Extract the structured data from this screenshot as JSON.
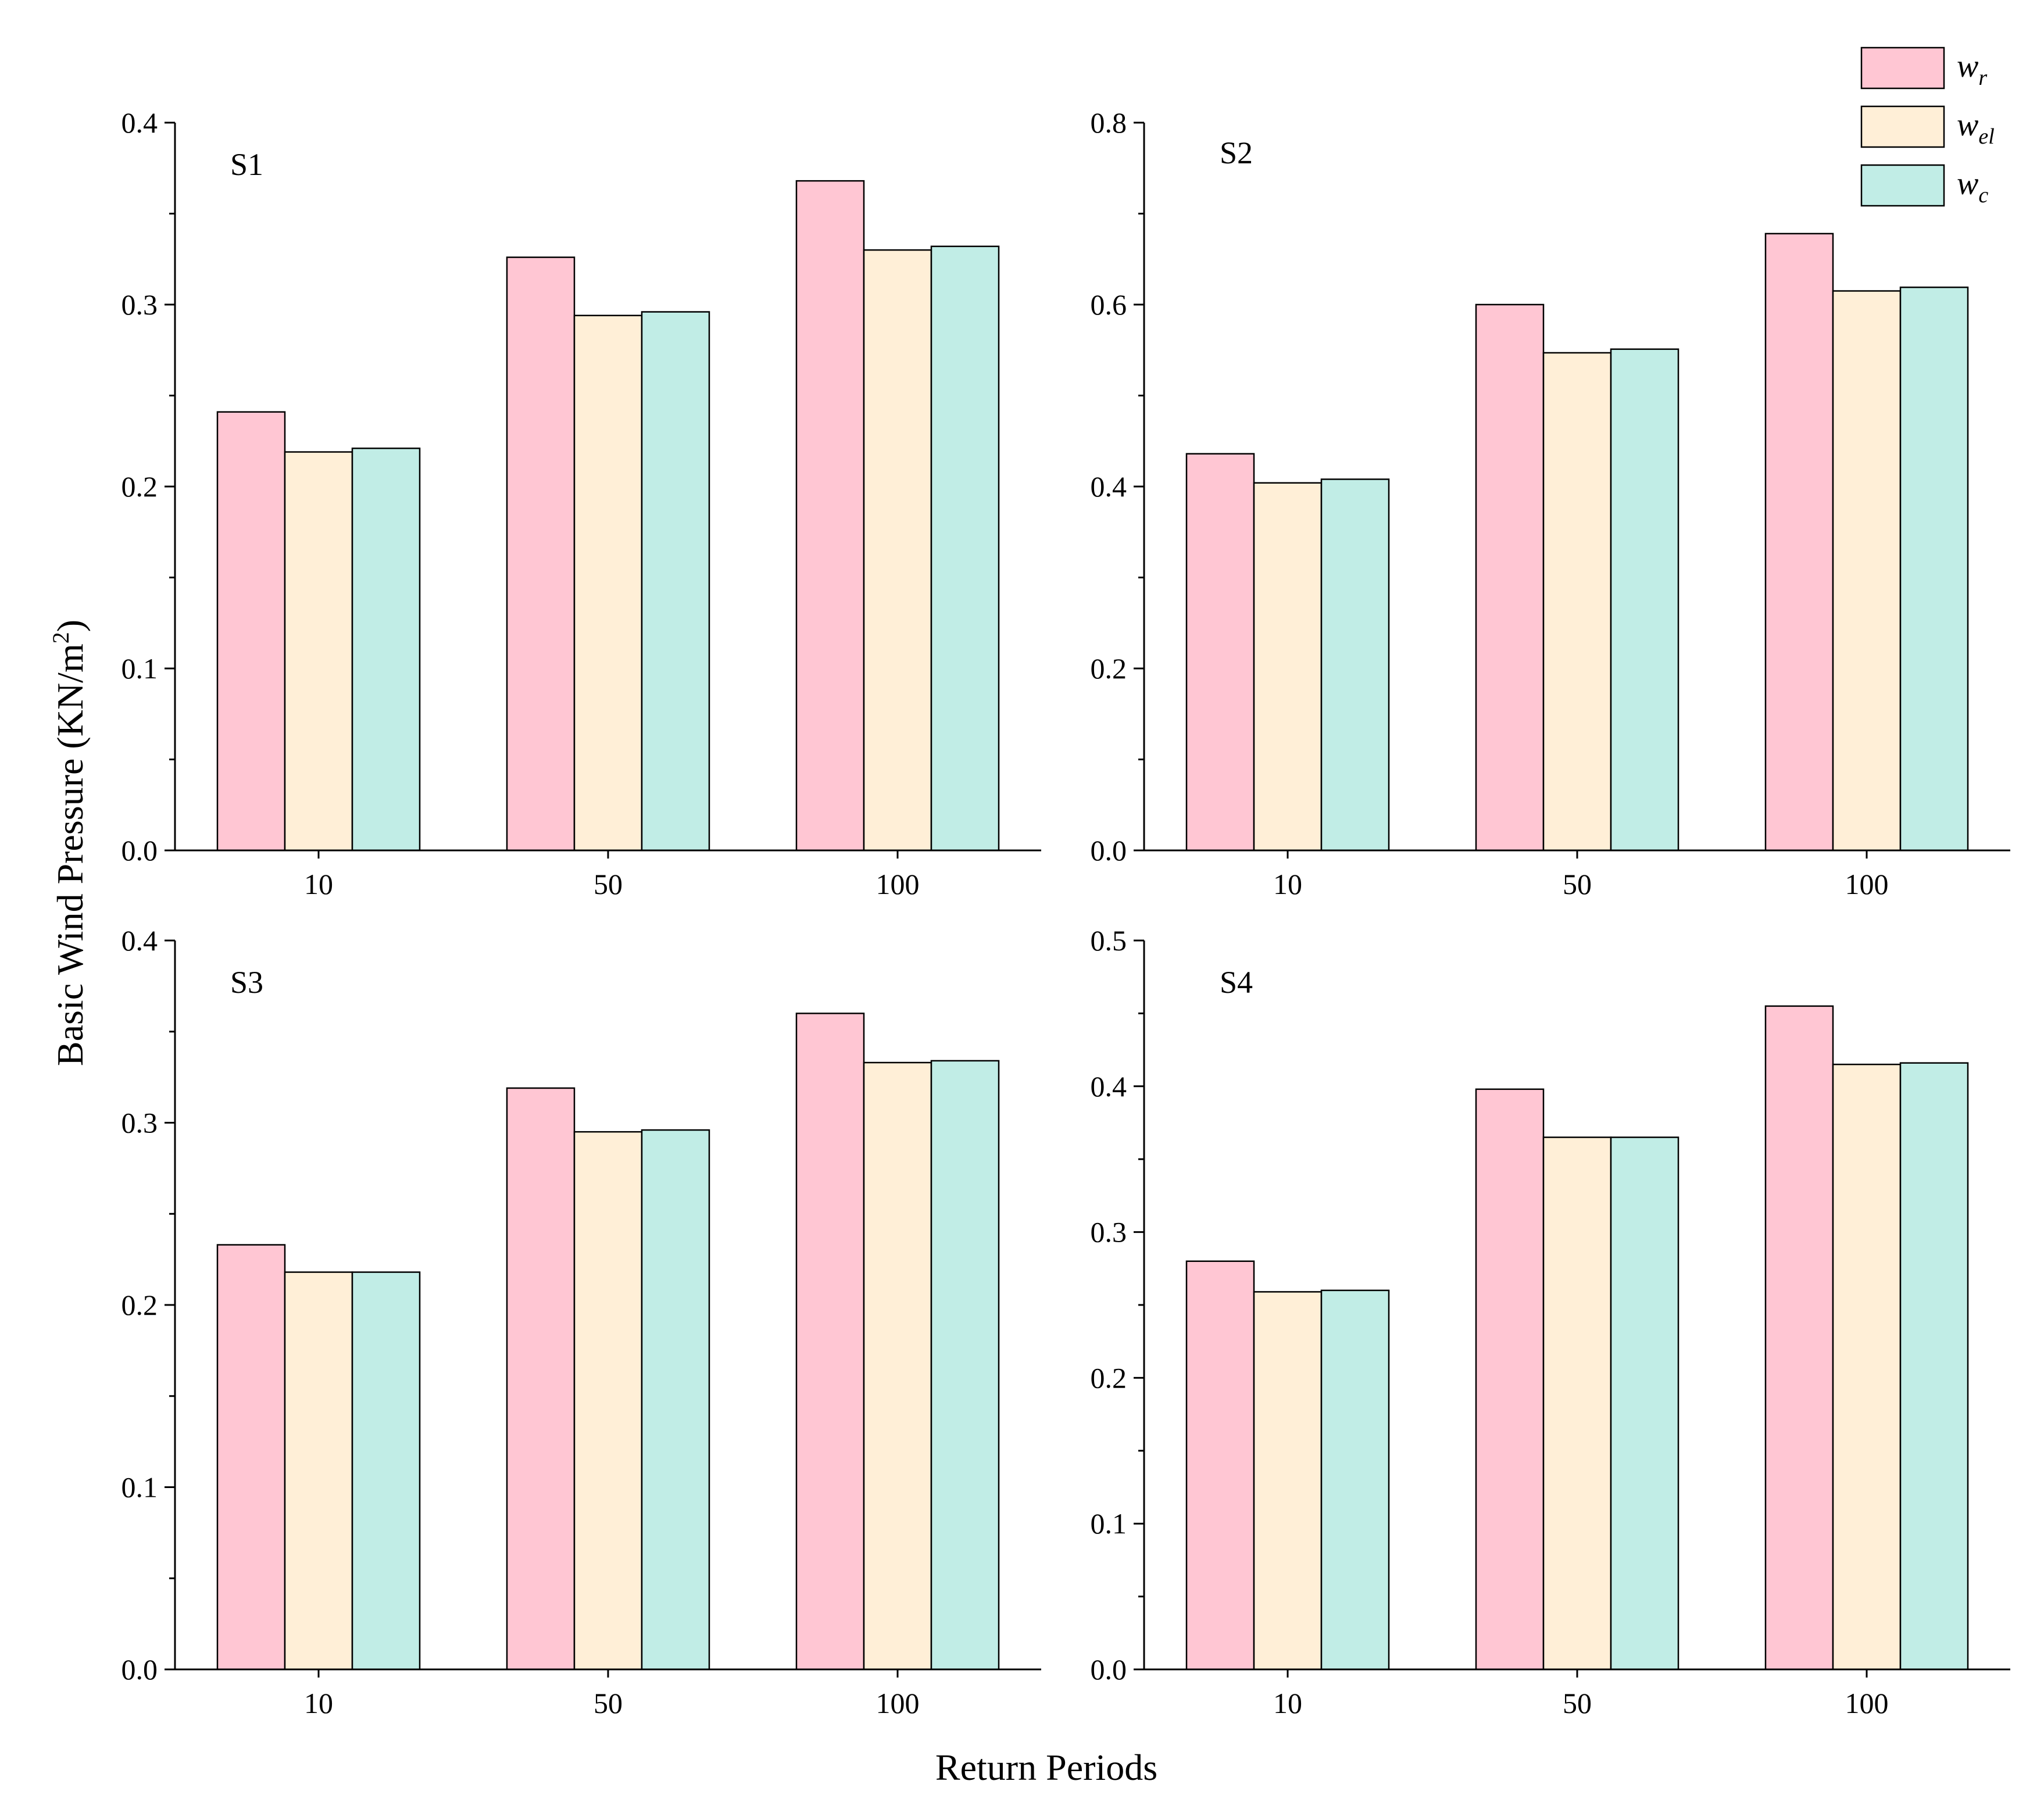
{
  "colors": {
    "wr": "#ffc6d3",
    "wel": "#ffefd7",
    "wc": "#c1ede6",
    "stroke": "#000000"
  },
  "axis_titles": {
    "ylabel_main": "Basic Wind Pressure (KN/m",
    "ylabel_sup": "2",
    "ylabel_end": ")",
    "xlabel": "Return Periods"
  },
  "legend": [
    {
      "key": "wr",
      "base": "w",
      "sub": "r"
    },
    {
      "key": "wel",
      "base": "w",
      "sub": "el"
    },
    {
      "key": "wc",
      "base": "w",
      "sub": "c"
    }
  ],
  "chart_data": [
    {
      "type": "bar",
      "title": "S1",
      "categories": [
        "10",
        "50",
        "100"
      ],
      "ylim": [
        0,
        0.4
      ],
      "yticks": [
        "0.0",
        "0.1",
        "0.2",
        "0.3",
        "0.4"
      ],
      "series": [
        {
          "name": "w_r",
          "values": [
            0.241,
            0.326,
            0.368
          ]
        },
        {
          "name": "w_el",
          "values": [
            0.219,
            0.294,
            0.33
          ]
        },
        {
          "name": "w_c",
          "values": [
            0.221,
            0.296,
            0.332
          ]
        }
      ]
    },
    {
      "type": "bar",
      "title": "S2",
      "categories": [
        "10",
        "50",
        "100"
      ],
      "ylim": [
        0,
        0.8
      ],
      "yticks": [
        "0.0",
        "0.2",
        "0.4",
        "0.6",
        "0.8"
      ],
      "series": [
        {
          "name": "w_r",
          "values": [
            0.436,
            0.6,
            0.678
          ]
        },
        {
          "name": "w_el",
          "values": [
            0.404,
            0.547,
            0.615
          ]
        },
        {
          "name": "w_c",
          "values": [
            0.408,
            0.551,
            0.619
          ]
        }
      ]
    },
    {
      "type": "bar",
      "title": "S3",
      "categories": [
        "10",
        "50",
        "100"
      ],
      "ylim": [
        0,
        0.4
      ],
      "yticks": [
        "0.0",
        "0.1",
        "0.2",
        "0.3",
        "0.4"
      ],
      "series": [
        {
          "name": "w_r",
          "values": [
            0.233,
            0.319,
            0.36
          ]
        },
        {
          "name": "w_el",
          "values": [
            0.218,
            0.295,
            0.333
          ]
        },
        {
          "name": "w_c",
          "values": [
            0.218,
            0.296,
            0.334
          ]
        }
      ]
    },
    {
      "type": "bar",
      "title": "S4",
      "categories": [
        "10",
        "50",
        "100"
      ],
      "ylim": [
        0,
        0.5
      ],
      "yticks": [
        "0.0",
        "0.1",
        "0.2",
        "0.3",
        "0.4",
        "0.5"
      ],
      "series": [
        {
          "name": "w_r",
          "values": [
            0.28,
            0.398,
            0.455
          ]
        },
        {
          "name": "w_el",
          "values": [
            0.259,
            0.365,
            0.415
          ]
        },
        {
          "name": "w_c",
          "values": [
            0.26,
            0.365,
            0.416
          ]
        }
      ]
    }
  ]
}
